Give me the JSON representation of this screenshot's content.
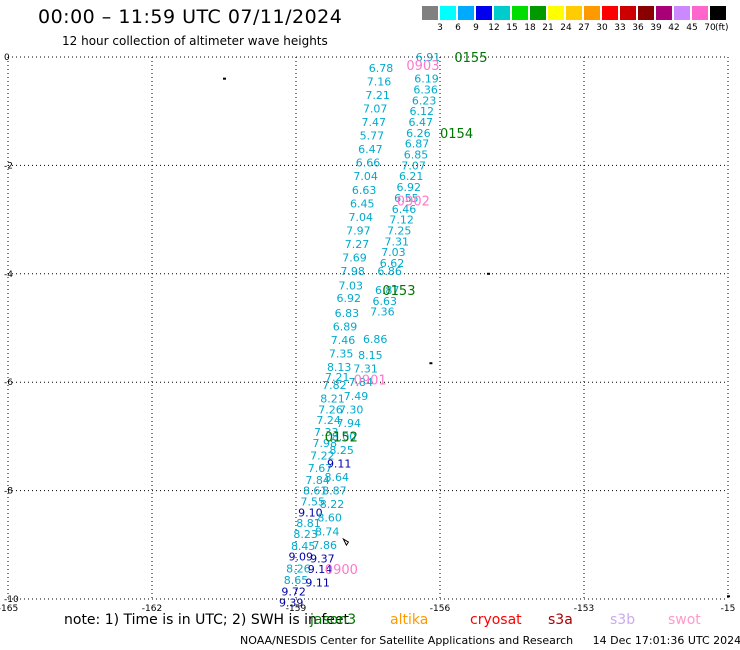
{
  "header": {
    "title": "00:00 – 11:59 UTC 07/11/2024",
    "subtitle": "12 hour collection of altimeter wave heights"
  },
  "colorbar": {
    "colors": [
      "#808080",
      "#00ffff",
      "#00aaff",
      "#0000ee",
      "#00cccc",
      "#00dd00",
      "#009900",
      "#ffff00",
      "#ffcc00",
      "#ff9900",
      "#ff0000",
      "#cc0000",
      "#880000",
      "#aa0077",
      "#cc88ff",
      "#ff66cc",
      "#000000"
    ],
    "labels": [
      "3",
      "6",
      "9",
      "12",
      "15",
      "18",
      "21",
      "24",
      "27",
      "30",
      "33",
      "36",
      "39",
      "42",
      "45",
      "70"
    ],
    "unit": "(ft)"
  },
  "axes": {
    "x_ticks": [
      "-165",
      "-162",
      "-159",
      "-156",
      "-153",
      "-15"
    ],
    "y_ticks": [
      "0",
      "-2",
      "-4",
      "-6",
      "-8",
      "-10"
    ]
  },
  "passes": [
    {
      "label": "0155",
      "lon": -155.7,
      "lat": 0.0,
      "color": "#007700"
    },
    {
      "label": "0154",
      "lon": -156.0,
      "lat": -1.4,
      "color": "#007700"
    },
    {
      "label": "0153",
      "lon": -157.2,
      "lat": -4.3,
      "color": "#007700"
    },
    {
      "label": "0152",
      "lon": -158.4,
      "lat": -7.0,
      "color": "#007700"
    },
    {
      "label": "0903",
      "lon": -156.7,
      "lat": -0.15,
      "color": "#ff77cc"
    },
    {
      "label": "0902",
      "lon": -156.9,
      "lat": -2.65,
      "color": "#ff77cc"
    },
    {
      "label": "0901",
      "lon": -157.8,
      "lat": -5.95,
      "color": "#ff77cc"
    },
    {
      "label": "0900",
      "lon": -158.4,
      "lat": -9.45,
      "color": "#ff77cc"
    }
  ],
  "wave_heights": [
    {
      "v": "6.78",
      "lon": -157.23,
      "lat": -0.2,
      "c": "#00aacc"
    },
    {
      "v": "7.16",
      "lon": -157.27,
      "lat": -0.45,
      "c": "#00aacc"
    },
    {
      "v": "7.21",
      "lon": -157.3,
      "lat": -0.7,
      "c": "#00aacc"
    },
    {
      "v": "7.07",
      "lon": -157.35,
      "lat": -0.95,
      "c": "#00aacc"
    },
    {
      "v": "7.47",
      "lon": -157.38,
      "lat": -1.2,
      "c": "#00aacc"
    },
    {
      "v": "5.77",
      "lon": -157.42,
      "lat": -1.45,
      "c": "#00aacc"
    },
    {
      "v": "6.47",
      "lon": -157.45,
      "lat": -1.7,
      "c": "#00aacc"
    },
    {
      "v": "6.66",
      "lon": -157.5,
      "lat": -1.95,
      "c": "#00aacc"
    },
    {
      "v": "7.04",
      "lon": -157.55,
      "lat": -2.2,
      "c": "#00aacc"
    },
    {
      "v": "6.63",
      "lon": -157.58,
      "lat": -2.45,
      "c": "#00aacc"
    },
    {
      "v": "6.45",
      "lon": -157.62,
      "lat": -2.7,
      "c": "#00aacc"
    },
    {
      "v": "7.04",
      "lon": -157.65,
      "lat": -2.95,
      "c": "#00aacc"
    },
    {
      "v": "7.97",
      "lon": -157.7,
      "lat": -3.2,
      "c": "#00aacc"
    },
    {
      "v": "7.27",
      "lon": -157.73,
      "lat": -3.45,
      "c": "#00aacc"
    },
    {
      "v": "7.69",
      "lon": -157.78,
      "lat": -3.7,
      "c": "#00aacc"
    },
    {
      "v": "7.98",
      "lon": -157.82,
      "lat": -3.95,
      "c": "#00aacc"
    },
    {
      "v": "7.03",
      "lon": -157.86,
      "lat": -4.22,
      "c": "#00aacc"
    },
    {
      "v": "6.92",
      "lon": -157.9,
      "lat": -4.45,
      "c": "#00aacc"
    },
    {
      "v": "6.83",
      "lon": -157.94,
      "lat": -4.72,
      "c": "#00aacc"
    },
    {
      "v": "6.89",
      "lon": -157.98,
      "lat": -4.97,
      "c": "#00aacc"
    },
    {
      "v": "7.46",
      "lon": -158.02,
      "lat": -5.22,
      "c": "#00aacc"
    },
    {
      "v": "7.35",
      "lon": -158.06,
      "lat": -5.47,
      "c": "#00aacc"
    },
    {
      "v": "8.13",
      "lon": -158.1,
      "lat": -5.72,
      "c": "#00aacc"
    },
    {
      "v": "7.21",
      "lon": -158.14,
      "lat": -5.9,
      "c": "#00aacc"
    },
    {
      "v": "7.82",
      "lon": -158.2,
      "lat": -6.05,
      "c": "#00aacc"
    },
    {
      "v": "8.21",
      "lon": -158.24,
      "lat": -6.3,
      "c": "#00aacc"
    },
    {
      "v": "7.26",
      "lon": -158.28,
      "lat": -6.5,
      "c": "#00aacc"
    },
    {
      "v": "7.24",
      "lon": -158.32,
      "lat": -6.7,
      "c": "#00aacc"
    },
    {
      "v": "7.33",
      "lon": -158.37,
      "lat": -6.92,
      "c": "#00aacc"
    },
    {
      "v": "7.98",
      "lon": -158.4,
      "lat": -7.12,
      "c": "#00aacc"
    },
    {
      "v": "7.22",
      "lon": -158.45,
      "lat": -7.35,
      "c": "#00aacc"
    },
    {
      "v": "7.67",
      "lon": -158.5,
      "lat": -7.58,
      "c": "#00aacc"
    },
    {
      "v": "7.84",
      "lon": -158.55,
      "lat": -7.8,
      "c": "#00aacc"
    },
    {
      "v": "8.61",
      "lon": -158.6,
      "lat": -8.0,
      "c": "#00aacc"
    },
    {
      "v": "7.55",
      "lon": -158.65,
      "lat": -8.2,
      "c": "#00aacc"
    },
    {
      "v": "9.10",
      "lon": -158.7,
      "lat": -8.4,
      "c": "#0000aa"
    },
    {
      "v": "8.81",
      "lon": -158.74,
      "lat": -8.6,
      "c": "#00aacc"
    },
    {
      "v": "8.23",
      "lon": -158.8,
      "lat": -8.8,
      "c": "#00aacc"
    },
    {
      "v": "8.45",
      "lon": -158.85,
      "lat": -9.02,
      "c": "#00aacc"
    },
    {
      "v": "9.09",
      "lon": -158.9,
      "lat": -9.22,
      "c": "#0000aa"
    },
    {
      "v": "8.26",
      "lon": -158.95,
      "lat": -9.44,
      "c": "#00aacc"
    },
    {
      "v": "8.65",
      "lon": -159.0,
      "lat": -9.65,
      "c": "#00aacc"
    },
    {
      "v": "9.72",
      "lon": -159.05,
      "lat": -9.86,
      "c": "#0000aa"
    },
    {
      "v": "9.39",
      "lon": -159.1,
      "lat": -10.06,
      "c": "#0000aa"
    },
    {
      "v": "6.91",
      "lon": -156.25,
      "lat": 0.0,
      "c": "#00aacc"
    },
    {
      "v": "6.19",
      "lon": -156.28,
      "lat": -0.4,
      "c": "#00aacc"
    },
    {
      "v": "6.36",
      "lon": -156.3,
      "lat": -0.6,
      "c": "#00aacc"
    },
    {
      "v": "6.23",
      "lon": -156.33,
      "lat": -0.8,
      "c": "#00aacc"
    },
    {
      "v": "6.12",
      "lon": -156.38,
      "lat": -1.0,
      "c": "#00aacc"
    },
    {
      "v": "6.47",
      "lon": -156.4,
      "lat": -1.2,
      "c": "#00aacc"
    },
    {
      "v": "6.26",
      "lon": -156.45,
      "lat": -1.4,
      "c": "#00aacc"
    },
    {
      "v": "6.87",
      "lon": -156.48,
      "lat": -1.6,
      "c": "#00aacc"
    },
    {
      "v": "6.85",
      "lon": -156.5,
      "lat": -1.8,
      "c": "#00aacc"
    },
    {
      "v": "7.07",
      "lon": -156.55,
      "lat": -2.0,
      "c": "#00aacc"
    },
    {
      "v": "6.21",
      "lon": -156.6,
      "lat": -2.2,
      "c": "#00aacc"
    },
    {
      "v": "6.92",
      "lon": -156.65,
      "lat": -2.4,
      "c": "#00aacc"
    },
    {
      "v": "6.55",
      "lon": -156.7,
      "lat": -2.6,
      "c": "#00aacc"
    },
    {
      "v": "6.46",
      "lon": -156.75,
      "lat": -2.8,
      "c": "#00aacc"
    },
    {
      "v": "7.12",
      "lon": -156.8,
      "lat": -3.0,
      "c": "#00aacc"
    },
    {
      "v": "7.25",
      "lon": -156.85,
      "lat": -3.2,
      "c": "#00aacc"
    },
    {
      "v": "7.31",
      "lon": -156.9,
      "lat": -3.4,
      "c": "#00aacc"
    },
    {
      "v": "7.03",
      "lon": -156.97,
      "lat": -3.6,
      "c": "#00aacc"
    },
    {
      "v": "6.62",
      "lon": -157.0,
      "lat": -3.8,
      "c": "#00aacc"
    },
    {
      "v": "6.86",
      "lon": -157.05,
      "lat": -3.95,
      "c": "#00aacc"
    },
    {
      "v": "6.87",
      "lon": -157.1,
      "lat": -4.3,
      "c": "#00aacc"
    },
    {
      "v": "6.63",
      "lon": -157.15,
      "lat": -4.5,
      "c": "#00aacc"
    },
    {
      "v": "7.36",
      "lon": -157.2,
      "lat": -4.7,
      "c": "#00aacc"
    },
    {
      "v": "6.86",
      "lon": -157.35,
      "lat": -5.2,
      "c": "#00aacc"
    },
    {
      "v": "8.15",
      "lon": -157.45,
      "lat": -5.5,
      "c": "#00aacc"
    },
    {
      "v": "7.31",
      "lon": -157.55,
      "lat": -5.75,
      "c": "#00aacc"
    },
    {
      "v": "7.84",
      "lon": -157.65,
      "lat": -6.0,
      "c": "#00aacc"
    },
    {
      "v": "7.49",
      "lon": -157.75,
      "lat": -6.25,
      "c": "#00aacc"
    },
    {
      "v": "7.30",
      "lon": -157.85,
      "lat": -6.5,
      "c": "#00aacc"
    },
    {
      "v": "7.94",
      "lon": -157.9,
      "lat": -6.75,
      "c": "#00aacc"
    },
    {
      "v": "8.00",
      "lon": -158.0,
      "lat": -7.0,
      "c": "#00aacc"
    },
    {
      "v": "8.25",
      "lon": -158.05,
      "lat": -7.25,
      "c": "#00aacc"
    },
    {
      "v": "9.11",
      "lon": -158.1,
      "lat": -7.5,
      "c": "#0000aa"
    },
    {
      "v": "8.64",
      "lon": -158.15,
      "lat": -7.75,
      "c": "#00aacc"
    },
    {
      "v": "8.87",
      "lon": -158.2,
      "lat": -8.0,
      "c": "#00aacc"
    },
    {
      "v": "8.22",
      "lon": -158.25,
      "lat": -8.25,
      "c": "#00aacc"
    },
    {
      "v": "8.60",
      "lon": -158.3,
      "lat": -8.5,
      "c": "#00aacc"
    },
    {
      "v": "8.74",
      "lon": -158.35,
      "lat": -8.75,
      "c": "#00aacc"
    },
    {
      "v": "7.86",
      "lon": -158.4,
      "lat": -9.0,
      "c": "#00aacc"
    },
    {
      "v": "9.37",
      "lon": -158.45,
      "lat": -9.25,
      "c": "#0000aa"
    },
    {
      "v": "9.14",
      "lon": -158.5,
      "lat": -9.45,
      "c": "#0000aa"
    },
    {
      "v": "9.11",
      "lon": -158.55,
      "lat": -9.7,
      "c": "#0000aa"
    }
  ],
  "footer": {
    "note": "note:  1) Time is in UTC;  2) SWH is in feet",
    "missions": [
      {
        "name": "jason3",
        "color": "#007700"
      },
      {
        "name": "altika",
        "color": "#ff9900"
      },
      {
        "name": "cryosat",
        "color": "#ff0000"
      },
      {
        "name": "s3a",
        "color": "#aa0000"
      },
      {
        "name": "s3b",
        "color": "#ccaaee"
      },
      {
        "name": "swot",
        "color": "#ff99cc"
      }
    ],
    "credit_org": "NOAA/NESDIS Center for Satellite Applications and Research",
    "credit_date": "14 Dec 17:01:36 UTC 2024"
  }
}
